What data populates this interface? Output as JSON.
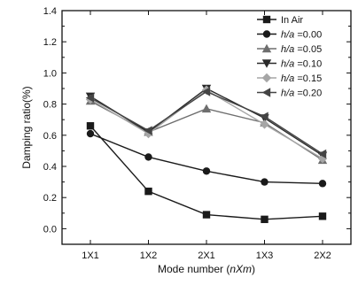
{
  "chart_data": {
    "type": "line",
    "title": "",
    "xlabel": "Mode number (nXm)",
    "ylabel": "Damping ratio(%)",
    "categories": [
      "1X1",
      "1X2",
      "2X1",
      "1X3",
      "2X2"
    ],
    "ylim": [
      -0.1,
      1.4
    ],
    "yticks": [
      "0.0",
      "0.2",
      "0.4",
      "0.6",
      "0.8",
      "1.0",
      "1.2",
      "1.4"
    ],
    "ytick_values": [
      0.0,
      0.2,
      0.4,
      0.6,
      0.8,
      1.0,
      1.2,
      1.4
    ],
    "grid": false,
    "legend_position": "top-right",
    "series": [
      {
        "name": "In Air",
        "label_plain": "In Air",
        "label_italic": "",
        "marker": "square",
        "color": "#1a1a1a",
        "values": [
          0.66,
          0.24,
          0.09,
          0.06,
          0.08
        ]
      },
      {
        "name": "hu/a =0.00",
        "label_italic": "h/a",
        "label_plain": " =0.00",
        "marker": "circle",
        "color": "#1a1a1a",
        "values": [
          0.61,
          0.46,
          0.37,
          0.3,
          0.29
        ]
      },
      {
        "name": "hu/a =0.05",
        "label_italic": "h/a",
        "label_plain": " =0.05",
        "marker": "triangle-up",
        "color": "#6e6e6e",
        "values": [
          0.82,
          0.62,
          0.77,
          0.68,
          0.44
        ]
      },
      {
        "name": "hu/a =0.10",
        "label_italic": "h/a",
        "label_plain": " =0.10",
        "marker": "triangle-down",
        "color": "#2a2a2a",
        "values": [
          0.85,
          0.62,
          0.9,
          0.71,
          0.47
        ]
      },
      {
        "name": "hu/a =0.15",
        "label_italic": "h/a",
        "label_plain": " =0.15",
        "marker": "diamond",
        "color": "#a6a6a6",
        "values": [
          0.83,
          0.61,
          0.89,
          0.67,
          0.45
        ]
      },
      {
        "name": "hu/a =0.20",
        "label_italic": "h/a",
        "label_plain": " =0.20",
        "marker": "left-triangle",
        "color": "#444444",
        "values": [
          0.84,
          0.63,
          0.88,
          0.72,
          0.48
        ]
      }
    ]
  }
}
